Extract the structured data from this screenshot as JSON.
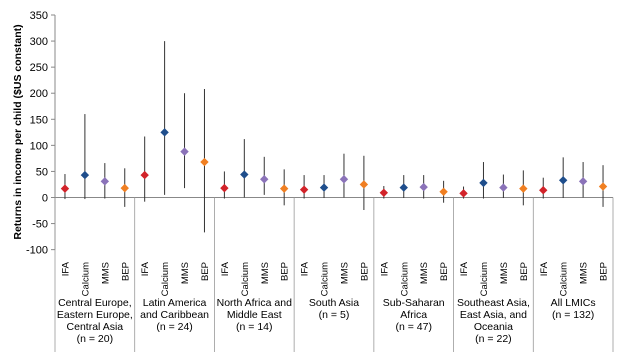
{
  "chart_data": {
    "type": "scatter",
    "ylabel": "Returns in income per child ($US constant)",
    "ylim": [
      -100,
      350
    ],
    "yticks": [
      -100,
      -50,
      0,
      50,
      100,
      150,
      200,
      250,
      300,
      350
    ],
    "grid": false,
    "legend": "none",
    "categories": [
      "IFA",
      "Calcium",
      "MMS",
      "BEP"
    ],
    "colors": {
      "IFA": "#d2232a",
      "Calcium": "#1f4e8c",
      "MMS": "#8b73b9",
      "BEP": "#f07f22"
    },
    "groups": [
      {
        "label": [
          "Central Europe,",
          "Eastern Europe,",
          "Central Asia",
          "(n = 20)"
        ],
        "points": [
          {
            "cat": "IFA",
            "value": 17,
            "low": -3,
            "high": 45
          },
          {
            "cat": "Calcium",
            "value": 43,
            "low": -3,
            "high": 160
          },
          {
            "cat": "MMS",
            "value": 31,
            "low": -2,
            "high": 66
          },
          {
            "cat": "BEP",
            "value": 18,
            "low": -18,
            "high": 56
          }
        ]
      },
      {
        "label": [
          "Latin America",
          "and Caribbean",
          "(n = 24)"
        ],
        "points": [
          {
            "cat": "IFA",
            "value": 43,
            "low": -8,
            "high": 117
          },
          {
            "cat": "Calcium",
            "value": 125,
            "low": 5,
            "high": 300
          },
          {
            "cat": "MMS",
            "value": 88,
            "low": 18,
            "high": 200
          },
          {
            "cat": "BEP",
            "value": 68,
            "low": -67,
            "high": 208
          }
        ]
      },
      {
        "label": [
          "North Africa and",
          "Middle East",
          "(n = 14)"
        ],
        "points": [
          {
            "cat": "IFA",
            "value": 18,
            "low": -2,
            "high": 50
          },
          {
            "cat": "Calcium",
            "value": 44,
            "low": 0,
            "high": 112
          },
          {
            "cat": "MMS",
            "value": 35,
            "low": 5,
            "high": 78
          },
          {
            "cat": "BEP",
            "value": 17,
            "low": -15,
            "high": 54
          }
        ]
      },
      {
        "label": [
          "South Asia",
          "(n = 5)"
        ],
        "points": [
          {
            "cat": "IFA",
            "value": 15,
            "low": -2,
            "high": 43
          },
          {
            "cat": "Calcium",
            "value": 19,
            "low": -1,
            "high": 43
          },
          {
            "cat": "MMS",
            "value": 35,
            "low": 0,
            "high": 84
          },
          {
            "cat": "BEP",
            "value": 25,
            "low": -24,
            "high": 80
          }
        ]
      },
      {
        "label": [
          "Sub-Saharan",
          "Africa",
          "(n = 47)"
        ],
        "points": [
          {
            "cat": "IFA",
            "value": 9,
            "low": -2,
            "high": 22
          },
          {
            "cat": "Calcium",
            "value": 19,
            "low": -1,
            "high": 43
          },
          {
            "cat": "MMS",
            "value": 20,
            "low": -2,
            "high": 43
          },
          {
            "cat": "BEP",
            "value": 11,
            "low": -10,
            "high": 32
          }
        ]
      },
      {
        "label": [
          "Southeast Asia,",
          "East Asia, and",
          "Oceania",
          "(n = 22)"
        ],
        "points": [
          {
            "cat": "IFA",
            "value": 8,
            "low": -2,
            "high": 21
          },
          {
            "cat": "Calcium",
            "value": 28,
            "low": -2,
            "high": 68
          },
          {
            "cat": "MMS",
            "value": 19,
            "low": -1,
            "high": 44
          },
          {
            "cat": "BEP",
            "value": 17,
            "low": -15,
            "high": 52
          }
        ]
      },
      {
        "label": [
          "All LMICs",
          "(n = 132)"
        ],
        "points": [
          {
            "cat": "IFA",
            "value": 14,
            "low": -2,
            "high": 38
          },
          {
            "cat": "Calcium",
            "value": 33,
            "low": -1,
            "high": 77
          },
          {
            "cat": "MMS",
            "value": 31,
            "low": 0,
            "high": 68
          },
          {
            "cat": "BEP",
            "value": 21,
            "low": -18,
            "high": 62
          }
        ]
      }
    ]
  }
}
